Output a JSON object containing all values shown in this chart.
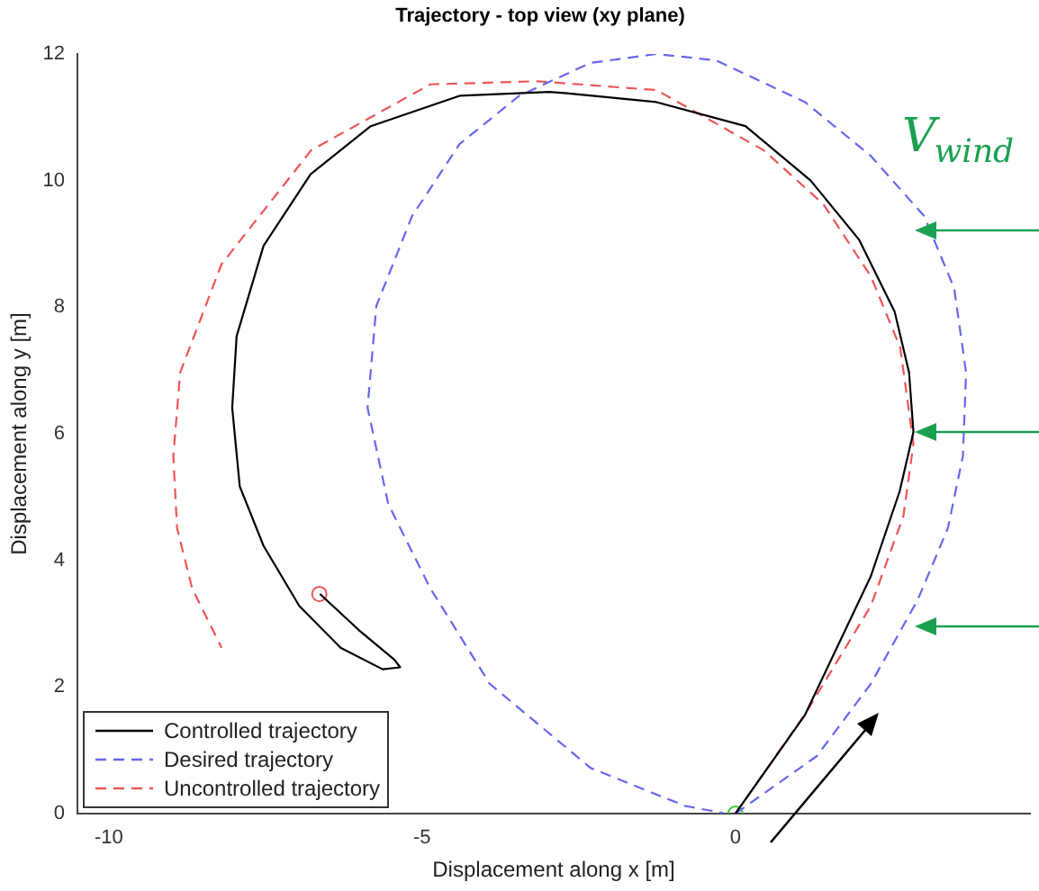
{
  "chart_data": {
    "type": "line",
    "title": "Trajectory - top view (xy plane)",
    "xlabel": "Displacement along x [m]",
    "ylabel": "Displacement along y [m]",
    "xlim": [
      -10.5,
      4.7
    ],
    "xticks": [
      -10,
      -5,
      0
    ],
    "ylim": [
      0,
      12
    ],
    "yticks": [
      0,
      2,
      4,
      6,
      8,
      10,
      12
    ],
    "grid": false,
    "legend": "bottom left",
    "annotations": [
      "V$_{wind}$"
    ],
    "series": [
      {
        "name": "Controlled trajectory",
        "color": "#000000",
        "line_style": "solid",
        "marker": "none",
        "x": [
          0,
          1.11,
          2.16,
          2.62,
          2.84,
          2.77,
          2.54,
          1.97,
          1.2,
          0.16,
          -1.26,
          -2.69,
          -2.97,
          -4.4,
          -5.82,
          -6.78,
          -7.53,
          -7.96,
          -8.03,
          -7.91,
          -7.53,
          -6.96,
          -6.3,
          -5.63,
          -5.35,
          -5.44,
          -6.01,
          -6.63
        ],
        "values": [
          0,
          1.56,
          3.75,
          5.09,
          6.03,
          6.97,
          7.93,
          9.07,
          10.0,
          10.86,
          11.24,
          11.38,
          11.4,
          11.34,
          10.86,
          10.1,
          8.97,
          7.54,
          6.41,
          5.17,
          4.23,
          3.28,
          2.62,
          2.28,
          2.31,
          2.43,
          2.9,
          3.47
        ]
      },
      {
        "name": "Desired trajectory",
        "color": "#6666ee",
        "line_style": "dashed",
        "marker": "none",
        "x": [
          0,
          1.3,
          2.16,
          2.91,
          3.39,
          3.63,
          3.68,
          3.49,
          3.01,
          2.16,
          1.11,
          -0.31,
          -1.26,
          -2.31,
          -3.45,
          -4.4,
          -5.16,
          -5.73,
          -5.87,
          -5.54,
          -4.87,
          -3.92,
          -2.31,
          -0.8,
          -0.2
        ],
        "values": [
          0,
          0.91,
          2.05,
          3.38,
          4.51,
          5.65,
          6.97,
          8.3,
          9.44,
          10.39,
          11.24,
          11.9,
          12.0,
          11.86,
          11.34,
          10.58,
          9.44,
          8.02,
          6.41,
          4.89,
          3.56,
          2.05,
          0.72,
          0.12,
          0.01
        ]
      },
      {
        "name": "Uncontrolled trajectory",
        "color": "#ee5555",
        "line_style": "dashed",
        "marker": "none",
        "x": [
          0,
          1.11,
          2.16,
          2.68,
          2.84,
          2.63,
          2.16,
          1.4,
          0.45,
          -1.26,
          -3.16,
          -4.87,
          -6.77,
          -8.2,
          -8.86,
          -8.97,
          -8.91,
          -8.67,
          -8.2
        ],
        "values": [
          0,
          1.57,
          3.28,
          4.7,
          5.84,
          7.36,
          8.49,
          9.63,
          10.48,
          11.43,
          11.57,
          11.52,
          10.48,
          8.68,
          6.97,
          5.65,
          4.51,
          3.56,
          2.62
        ]
      },
      {
        "type": "scatter",
        "color": "#33cc33",
        "marker": "circle",
        "x": [
          0
        ],
        "values": [
          0
        ]
      },
      {
        "type": "scatter",
        "color": "#ee5555",
        "marker": "circle",
        "x": [
          -6.64
        ],
        "values": [
          3.47
        ]
      }
    ]
  }
}
